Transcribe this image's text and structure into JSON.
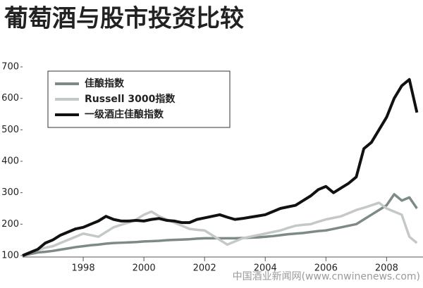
{
  "chart_data": {
    "type": "line",
    "title": "葡萄酒与股市投资比较",
    "annotation": "中国酒业新闻网(www.cnwinenews.com)",
    "x": [
      1996,
      1996.25,
      1996.5,
      1996.75,
      1997,
      1997.25,
      1997.5,
      1997.75,
      1998,
      1998.25,
      1998.5,
      1998.75,
      1999,
      1999.25,
      1999.5,
      1999.75,
      2000,
      2000.25,
      2000.5,
      2000.75,
      2001,
      2001.25,
      2001.5,
      2001.75,
      2002,
      2002.25,
      2002.5,
      2002.75,
      2003,
      2003.25,
      2003.5,
      2003.75,
      2004,
      2004.25,
      2004.5,
      2004.75,
      2005,
      2005.25,
      2005.5,
      2005.75,
      2006,
      2006.25,
      2006.5,
      2006.75,
      2007,
      2007.25,
      2007.5,
      2007.75,
      2008,
      2008.25,
      2008.5,
      2008.75,
      2009
    ],
    "series": [
      {
        "name": "佳酿指数",
        "color": "#7d8a86",
        "values": [
          100,
          105,
          110,
          112,
          115,
          119,
          123,
          127,
          130,
          133,
          135,
          138,
          140,
          141,
          142,
          143,
          145,
          146,
          147,
          149,
          150,
          151,
          152,
          154,
          155,
          155,
          155,
          155,
          155,
          156,
          157,
          158,
          160,
          162,
          165,
          168,
          170,
          172,
          175,
          178,
          180,
          185,
          190,
          195,
          200,
          215,
          230,
          245,
          260,
          295,
          275,
          285,
          250
        ]
      },
      {
        "name": "Russell 3000指数",
        "color": "#c4c9c7",
        "values": [
          100,
          110,
          118,
          125,
          130,
          140,
          150,
          160,
          170,
          165,
          160,
          175,
          190,
          198,
          205,
          215,
          230,
          240,
          225,
          215,
          205,
          195,
          185,
          182,
          180,
          165,
          150,
          135,
          145,
          155,
          160,
          165,
          170,
          175,
          180,
          188,
          195,
          198,
          200,
          208,
          215,
          220,
          225,
          235,
          245,
          252,
          260,
          268,
          250,
          240,
          230,
          160,
          140
        ]
      },
      {
        "name": "一级酒庄佳酿指数",
        "color": "#111111",
        "values": [
          100,
          110,
          120,
          140,
          150,
          165,
          175,
          185,
          190,
          200,
          210,
          225,
          215,
          210,
          210,
          212,
          210,
          215,
          218,
          212,
          210,
          205,
          205,
          215,
          220,
          225,
          230,
          222,
          215,
          218,
          222,
          226,
          230,
          240,
          250,
          255,
          260,
          275,
          290,
          310,
          320,
          300,
          315,
          330,
          350,
          440,
          460,
          500,
          540,
          600,
          640,
          660,
          555
        ]
      }
    ],
    "xlim": [
      1996,
      2009.2
    ],
    "ylim": [
      100,
      700
    ],
    "xticks": [
      1998,
      2000,
      2002,
      2004,
      2006,
      2008
    ],
    "yticks": [
      100,
      200,
      300,
      400,
      500,
      600,
      700
    ],
    "legend": "upper left"
  }
}
